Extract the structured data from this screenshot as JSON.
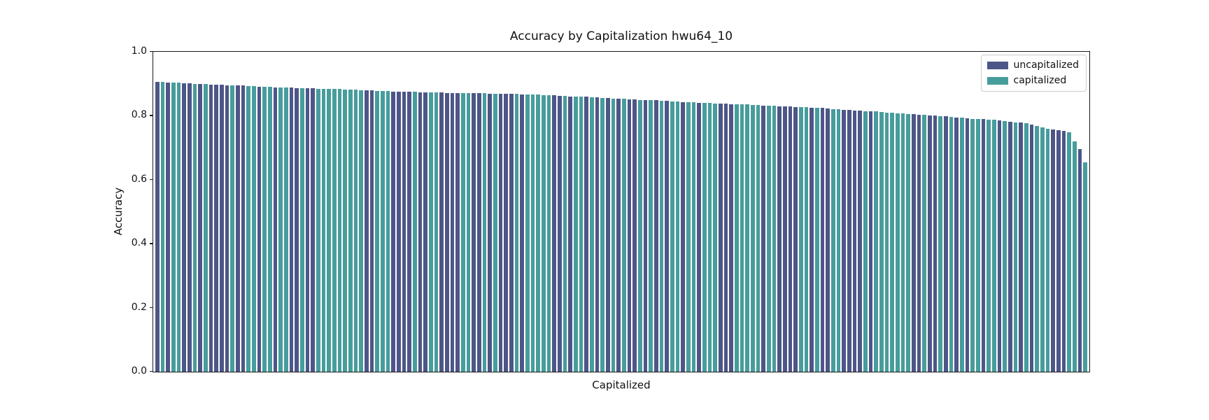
{
  "chart_data": {
    "type": "bar",
    "title": "Accuracy by Capitalization hwu64_10",
    "xlabel": "Capitalized",
    "ylabel": "Accuracy",
    "ylim": [
      0.0,
      1.0
    ],
    "y_ticks": [
      "0.0",
      "0.2",
      "0.4",
      "0.6",
      "0.8",
      "1.0"
    ],
    "grid": false,
    "legend": {
      "position": "upper right",
      "entries": [
        "uncapitalized",
        "capitalized"
      ]
    },
    "series_colors": {
      "uncapitalized": "#4d5687",
      "capitalized": "#469d9c"
    },
    "series_key_map": {
      "u": "uncapitalized",
      "c": "capitalized"
    },
    "bar_series": [
      "u",
      "c",
      "u",
      "c",
      "c",
      "u",
      "u",
      "c",
      "u",
      "c",
      "u",
      "u",
      "u",
      "u",
      "c",
      "u",
      "u",
      "c",
      "c",
      "u",
      "c",
      "c",
      "u",
      "c",
      "c",
      "u",
      "u",
      "c",
      "u",
      "u",
      "c",
      "c",
      "c",
      "c",
      "c",
      "c",
      "c",
      "c",
      "c",
      "u",
      "u",
      "c",
      "c",
      "c",
      "u",
      "u",
      "u",
      "u",
      "c",
      "u",
      "u",
      "c",
      "c",
      "u",
      "u",
      "u",
      "u",
      "c",
      "c",
      "u",
      "u",
      "c",
      "u",
      "c",
      "u",
      "u",
      "u",
      "c",
      "u",
      "c",
      "c",
      "c",
      "c",
      "c",
      "u",
      "u",
      "c",
      "u",
      "c",
      "c",
      "u",
      "c",
      "u",
      "c",
      "u",
      "c",
      "u",
      "c",
      "u",
      "u",
      "c",
      "u",
      "c",
      "u",
      "c",
      "u",
      "c",
      "c",
      "u",
      "c",
      "c",
      "u",
      "c",
      "c",
      "c",
      "u",
      "u",
      "u",
      "c",
      "c",
      "c",
      "c",
      "c",
      "u",
      "c",
      "c",
      "u",
      "u",
      "u",
      "u",
      "c",
      "c",
      "u",
      "c",
      "u",
      "u",
      "c",
      "c",
      "u",
      "u",
      "u",
      "u",
      "c",
      "u",
      "c",
      "c",
      "c",
      "c",
      "c",
      "c",
      "c",
      "u",
      "u",
      "c",
      "u",
      "u",
      "c",
      "u",
      "c",
      "u",
      "c",
      "u",
      "c",
      "c",
      "u",
      "c",
      "c",
      "u",
      "c",
      "u",
      "c",
      "u",
      "c",
      "u",
      "c",
      "c",
      "c",
      "u",
      "u",
      "u",
      "c",
      "c",
      "u",
      "c"
    ],
    "values": [
      0.906,
      0.905,
      0.904,
      0.904,
      0.903,
      0.902,
      0.901,
      0.9,
      0.9,
      0.899,
      0.898,
      0.897,
      0.897,
      0.896,
      0.895,
      0.894,
      0.894,
      0.893,
      0.892,
      0.891,
      0.891,
      0.89,
      0.889,
      0.889,
      0.888,
      0.888,
      0.887,
      0.887,
      0.886,
      0.886,
      0.885,
      0.884,
      0.884,
      0.883,
      0.883,
      0.882,
      0.881,
      0.881,
      0.88,
      0.88,
      0.879,
      0.878,
      0.878,
      0.877,
      0.876,
      0.876,
      0.875,
      0.875,
      0.875,
      0.874,
      0.874,
      0.874,
      0.873,
      0.873,
      0.872,
      0.872,
      0.872,
      0.871,
      0.871,
      0.871,
      0.87,
      0.87,
      0.869,
      0.869,
      0.869,
      0.868,
      0.868,
      0.868,
      0.867,
      0.867,
      0.867,
      0.866,
      0.865,
      0.864,
      0.864,
      0.863,
      0.862,
      0.861,
      0.86,
      0.859,
      0.859,
      0.858,
      0.857,
      0.856,
      0.855,
      0.854,
      0.854,
      0.853,
      0.852,
      0.851,
      0.85,
      0.849,
      0.849,
      0.848,
      0.847,
      0.846,
      0.845,
      0.844,
      0.843,
      0.843,
      0.842,
      0.841,
      0.84,
      0.84,
      0.839,
      0.838,
      0.838,
      0.837,
      0.836,
      0.835,
      0.835,
      0.834,
      0.833,
      0.832,
      0.832,
      0.831,
      0.83,
      0.829,
      0.829,
      0.828,
      0.827,
      0.827,
      0.826,
      0.825,
      0.824,
      0.823,
      0.821,
      0.82,
      0.819,
      0.818,
      0.817,
      0.816,
      0.815,
      0.814,
      0.813,
      0.811,
      0.81,
      0.809,
      0.808,
      0.807,
      0.806,
      0.805,
      0.804,
      0.803,
      0.801,
      0.8,
      0.799,
      0.798,
      0.797,
      0.795,
      0.794,
      0.792,
      0.791,
      0.79,
      0.789,
      0.788,
      0.787,
      0.785,
      0.784,
      0.782,
      0.78,
      0.778,
      0.776,
      0.772,
      0.768,
      0.763,
      0.76,
      0.757,
      0.754,
      0.752,
      0.748,
      0.72,
      0.696,
      0.654
    ]
  }
}
